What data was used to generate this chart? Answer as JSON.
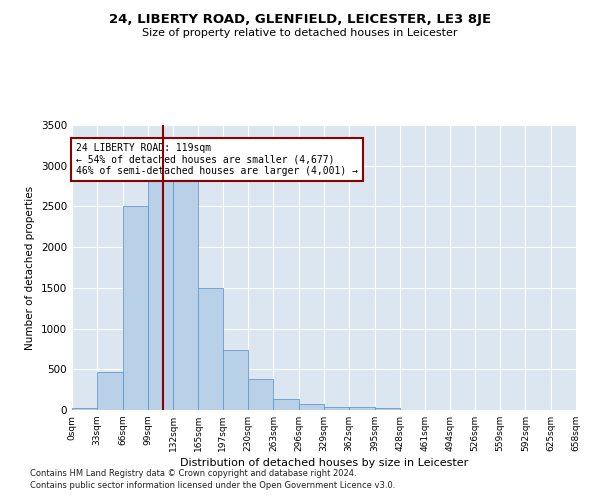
{
  "title": "24, LIBERTY ROAD, GLENFIELD, LEICESTER, LE3 8JE",
  "subtitle": "Size of property relative to detached houses in Leicester",
  "xlabel": "Distribution of detached houses by size in Leicester",
  "ylabel": "Number of detached properties",
  "bar_values": [
    20,
    470,
    2500,
    2820,
    2820,
    1500,
    740,
    380,
    140,
    70,
    40,
    40,
    25,
    0,
    0,
    0,
    0,
    0,
    0,
    0
  ],
  "bin_edges": [
    0,
    33,
    66,
    99,
    132,
    165,
    197,
    230,
    263,
    296,
    329,
    362,
    395,
    428,
    461,
    494,
    526,
    559,
    592,
    625,
    658
  ],
  "tick_labels": [
    "0sqm",
    "33sqm",
    "66sqm",
    "99sqm",
    "132sqm",
    "165sqm",
    "197sqm",
    "230sqm",
    "263sqm",
    "296sqm",
    "329sqm",
    "362sqm",
    "395sqm",
    "428sqm",
    "461sqm",
    "494sqm",
    "526sqm",
    "559sqm",
    "592sqm",
    "625sqm",
    "658sqm"
  ],
  "bar_color": "#b8d0e8",
  "bar_edge_color": "#6699cc",
  "bg_color": "#dce6f0",
  "grid_color": "#ffffff",
  "vline_x": 119,
  "vline_color": "#8b0000",
  "annotation_text": "24 LIBERTY ROAD: 119sqm\n← 54% of detached houses are smaller (4,677)\n46% of semi-detached houses are larger (4,001) →",
  "annotation_box_color": "#ffffff",
  "annotation_box_edge": "#8b0000",
  "ylim": [
    0,
    3500
  ],
  "yticks": [
    0,
    500,
    1000,
    1500,
    2000,
    2500,
    3000,
    3500
  ],
  "footnote1": "Contains HM Land Registry data © Crown copyright and database right 2024.",
  "footnote2": "Contains public sector information licensed under the Open Government Licence v3.0."
}
